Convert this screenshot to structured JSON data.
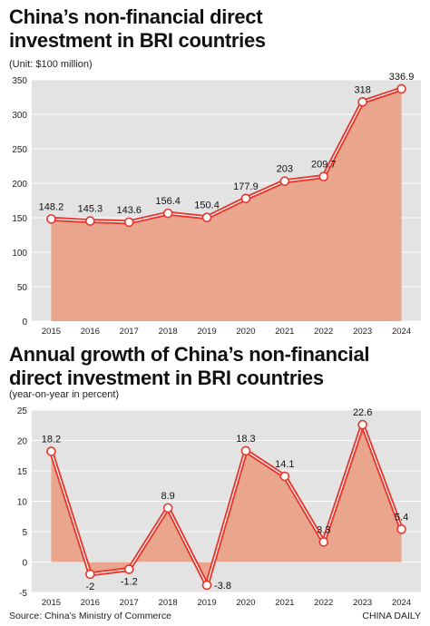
{
  "chart_data": [
    {
      "type": "area",
      "title_lines": [
        "China’s non-financial direct",
        "investment in BRI countries"
      ],
      "unit": "(Unit: $100 million)",
      "categories": [
        "2015",
        "2016",
        "2017",
        "2018",
        "2019",
        "2020",
        "2021",
        "2022",
        "2023",
        "2024"
      ],
      "values": [
        148.2,
        145.3,
        143.6,
        156.4,
        150.4,
        177.9,
        203,
        209.7,
        318,
        336.9
      ],
      "value_labels": [
        "148.2",
        "145.3",
        "143.6",
        "156.4",
        "150.4",
        "177.9",
        "203",
        "209.7",
        "318",
        "336.9"
      ],
      "yticks": [
        "0",
        "50",
        "100",
        "150",
        "200",
        "250",
        "300",
        "350"
      ],
      "ylim": [
        0,
        350
      ],
      "grid": "horizontal",
      "colors": {
        "line": "#e8372d",
        "fill": "#e9a58d",
        "plot_bg": "#e3e3e3"
      }
    },
    {
      "type": "area",
      "title_lines": [
        "Annual growth of China’s non-financial",
        "direct investment in BRI countries"
      ],
      "unit": "(year-on-year in percent)",
      "categories": [
        "2015",
        "2016",
        "2017",
        "2018",
        "2019",
        "2020",
        "2021",
        "2022",
        "2023",
        "2024"
      ],
      "values": [
        18.2,
        -2,
        -1.2,
        8.9,
        -3.8,
        18.3,
        14.1,
        3.3,
        22.6,
        5.4
      ],
      "value_labels": [
        "18.2",
        "-2",
        "-1.2",
        "8.9",
        "-3.8",
        "18.3",
        "14.1",
        "3.3",
        "22.6",
        "5.4"
      ],
      "yticks": [
        "-5",
        "0",
        "5",
        "10",
        "15",
        "20",
        "25"
      ],
      "ylim": [
        -5,
        25
      ],
      "grid": "horizontal",
      "colors": {
        "line": "#e8372d",
        "fill": "#e9a58d",
        "plot_bg": "#e3e3e3"
      }
    }
  ],
  "footer": {
    "source": "Source: China’s Ministry of Commerce",
    "credit": "CHINA DAILY"
  }
}
